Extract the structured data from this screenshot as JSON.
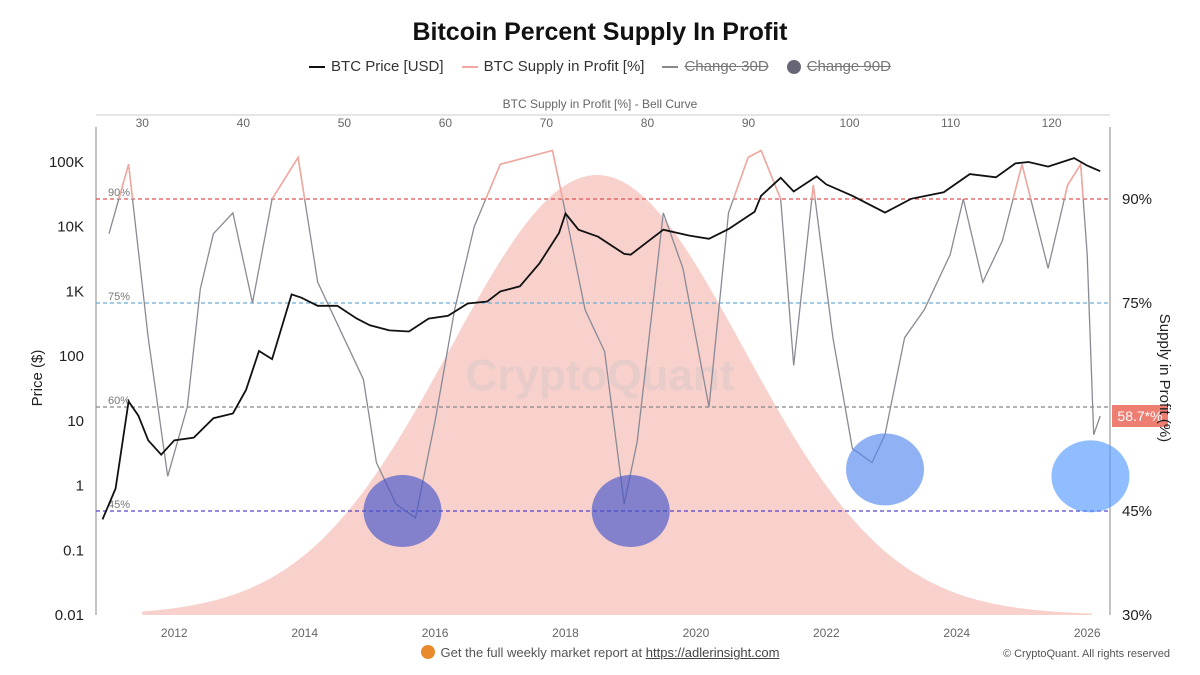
{
  "title": "Bitcoin Percent Supply In Profit",
  "legend": [
    {
      "label": "BTC Price [USD]",
      "color": "#111111",
      "kind": "line",
      "enabled": true
    },
    {
      "label": "BTC Supply in Profit [%]",
      "color": "#f0a8a0",
      "kind": "line",
      "enabled": true
    },
    {
      "label": "Change 30D",
      "color": "#888888",
      "kind": "line",
      "enabled": false
    },
    {
      "label": "Change 90D",
      "color": "#666677",
      "kind": "dot",
      "enabled": false
    }
  ],
  "top_axis": {
    "label": "BTC Supply in Profit [%] - Bell Curve",
    "ticks": [
      "30",
      "40",
      "50",
      "60",
      "70",
      "80",
      "90",
      "100",
      "110",
      "120"
    ]
  },
  "left_axis": {
    "label": "Price ($)",
    "ticks": [
      "100K",
      "10K",
      "1K",
      "100",
      "10",
      "1",
      "0.1",
      "0.01"
    ],
    "values": [
      100000,
      10000,
      1000,
      100,
      10,
      1,
      0.1,
      0.01
    ]
  },
  "right_axis": {
    "label": "Supply in Profit (%)",
    "ticks": [
      "90%",
      "75%",
      "45%",
      "30%"
    ],
    "values": [
      90,
      75,
      45,
      30
    ]
  },
  "bottom_axis": {
    "ticks": [
      "2012",
      "2014",
      "2016",
      "2018",
      "2020",
      "2022",
      "2024",
      "2026"
    ]
  },
  "reference_lines": [
    {
      "label": "90%",
      "value": 90,
      "color": "#e05555"
    },
    {
      "label": "75%",
      "value": 75,
      "color": "#6aaed6"
    },
    {
      "label": "60%",
      "value": 60,
      "color": "#888888"
    },
    {
      "label": "45%",
      "value": 45,
      "color": "#5544cc"
    }
  ],
  "current_value": "58.7*%",
  "watermark": "CryptoQuant",
  "footer": {
    "text": "Get the full weekly market report at",
    "link": "https://adlerinsight.com"
  },
  "copyright": "© CryptoQuant. All rights reserved",
  "chart_data": {
    "type": "line",
    "x_range": [
      2010.8,
      2026.35
    ],
    "price_axis": "log",
    "price_range": [
      0.01,
      100000
    ],
    "supply_range": [
      30,
      97.5
    ],
    "series": [
      {
        "name": "BTC Price [USD]",
        "x": [
          2010.9,
          2011.1,
          2011.3,
          2011.45,
          2011.6,
          2011.8,
          2012.0,
          2012.3,
          2012.6,
          2012.9,
          2013.1,
          2013.3,
          2013.5,
          2013.8,
          2013.95,
          2014.2,
          2014.5,
          2014.8,
          2015.0,
          2015.3,
          2015.6,
          2015.9,
          2016.2,
          2016.5,
          2016.8,
          2017.0,
          2017.3,
          2017.6,
          2017.9,
          2018.0,
          2018.2,
          2018.5,
          2018.9,
          2019.0,
          2019.5,
          2019.9,
          2020.2,
          2020.5,
          2020.9,
          2021.0,
          2021.3,
          2021.5,
          2021.85,
          2022.0,
          2022.4,
          2022.9,
          2023.3,
          2023.8,
          2024.2,
          2024.6,
          2024.9,
          2025.1,
          2025.4,
          2025.8,
          2026.0,
          2026.2
        ],
        "y": [
          0.3,
          0.9,
          20,
          12,
          5,
          3,
          5,
          5.5,
          11,
          13,
          30,
          120,
          90,
          900,
          800,
          600,
          600,
          380,
          300,
          250,
          240,
          380,
          420,
          650,
          700,
          1000,
          1200,
          2700,
          8000,
          16000,
          9000,
          7000,
          3800,
          3700,
          9000,
          7300,
          6500,
          9200,
          17000,
          30000,
          57000,
          35000,
          60000,
          45000,
          30000,
          16500,
          27000,
          34000,
          65000,
          58000,
          95000,
          100000,
          85000,
          115000,
          88000,
          72000
        ]
      },
      {
        "name": "BTC Supply in Profit [%]",
        "x": [
          2011.0,
          2011.3,
          2011.6,
          2011.9,
          2012.2,
          2012.4,
          2012.6,
          2012.9,
          2013.2,
          2013.5,
          2013.9,
          2014.2,
          2014.6,
          2014.9,
          2015.1,
          2015.4,
          2015.7,
          2016.0,
          2016.3,
          2016.6,
          2017.0,
          2017.4,
          2017.8,
          2018.0,
          2018.3,
          2018.6,
          2018.9,
          2019.1,
          2019.5,
          2019.8,
          2020.2,
          2020.5,
          2020.8,
          2021.0,
          2021.3,
          2021.5,
          2021.8,
          2022.1,
          2022.4,
          2022.7,
          2022.9,
          2023.2,
          2023.5,
          2023.9,
          2024.1,
          2024.4,
          2024.7,
          2025.0,
          2025.4,
          2025.7,
          2025.9,
          2026.0,
          2026.1,
          2026.2
        ],
        "y": [
          85,
          95,
          70,
          50,
          60,
          77,
          85,
          88,
          75,
          90,
          96,
          78,
          70,
          64,
          52,
          46,
          44,
          58,
          74,
          86,
          95,
          96,
          97,
          88,
          74,
          68,
          46,
          55,
          88,
          80,
          60,
          88,
          96,
          97,
          90,
          66,
          92,
          70,
          54,
          52,
          56,
          70,
          74,
          82,
          90,
          78,
          84,
          95,
          80,
          92,
          95,
          82,
          56,
          58.7
        ]
      }
    ],
    "bell_curve": {
      "x": [
        30,
        40,
        50,
        60,
        70,
        75,
        80,
        90,
        100,
        110,
        120,
        124
      ],
      "density_relative": [
        0.02,
        0.13,
        0.4,
        0.77,
        0.97,
        1.0,
        0.97,
        0.77,
        0.4,
        0.13,
        0.02,
        0.01
      ]
    },
    "highlighted_regions": [
      {
        "x": 2015.5,
        "supply": 45,
        "color": "#4455cc"
      },
      {
        "x": 2019.0,
        "supply": 45,
        "color": "#4455cc"
      },
      {
        "x": 2022.9,
        "supply": 51,
        "color": "#5588ee"
      },
      {
        "x": 2026.05,
        "supply": 50,
        "color": "#5599ff"
      }
    ],
    "grid": false
  }
}
